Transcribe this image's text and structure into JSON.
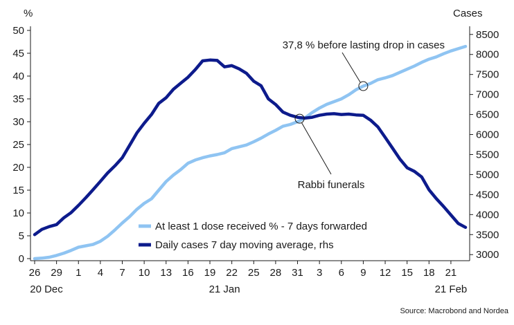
{
  "chart_data": {
    "type": "line",
    "left_axis": {
      "unit": "%",
      "range": [
        0,
        50
      ],
      "ticks": [
        "0",
        "5",
        "10",
        "15",
        "20",
        "25",
        "30",
        "35",
        "40",
        "45",
        "50"
      ]
    },
    "right_axis": {
      "unit": "Cases",
      "range": [
        2900,
        8600
      ],
      "ticks": [
        "3000",
        "3500",
        "4000",
        "4500",
        "5000",
        "5500",
        "6000",
        "6500",
        "7000",
        "7500",
        "8000",
        "8500"
      ]
    },
    "x_axis": {
      "start_date": "2020-12-26",
      "end_date": "2021-02-23",
      "tick_labels": [
        "26",
        "29",
        "1",
        "4",
        "7",
        "10",
        "13",
        "16",
        "19",
        "22",
        "25",
        "28",
        "31",
        "3",
        "6",
        "9",
        "12",
        "15",
        "18",
        "21"
      ],
      "month_labels": [
        "20 Dec",
        "21 Jan",
        "21 Feb"
      ]
    },
    "series": [
      {
        "name": "At least 1 dose received % - 7 days forwarded",
        "axis": "left",
        "color": "#8fc4f2",
        "x": [
          "2020-12-26",
          "2020-12-27",
          "2020-12-28",
          "2020-12-29",
          "2020-12-30",
          "2020-12-31",
          "2021-01-01",
          "2021-01-02",
          "2021-01-03",
          "2021-01-04",
          "2021-01-05",
          "2021-01-06",
          "2021-01-07",
          "2021-01-08",
          "2021-01-09",
          "2021-01-10",
          "2021-01-11",
          "2021-01-12",
          "2021-01-13",
          "2021-01-14",
          "2021-01-15",
          "2021-01-16",
          "2021-01-17",
          "2021-01-18",
          "2021-01-19",
          "2021-01-20",
          "2021-01-21",
          "2021-01-22",
          "2021-01-23",
          "2021-01-24",
          "2021-01-25",
          "2021-01-26",
          "2021-01-27",
          "2021-01-28",
          "2021-01-29",
          "2021-01-30",
          "2021-01-31",
          "2021-02-01",
          "2021-02-02",
          "2021-02-03",
          "2021-02-04",
          "2021-02-05",
          "2021-02-06",
          "2021-02-07",
          "2021-02-08",
          "2021-02-09",
          "2021-02-10",
          "2021-02-11",
          "2021-02-12",
          "2021-02-13",
          "2021-02-14",
          "2021-02-15",
          "2021-02-16",
          "2021-02-17",
          "2021-02-18",
          "2021-02-19",
          "2021-02-20",
          "2021-02-21",
          "2021-02-22",
          "2021-02-23"
        ],
        "values": [
          0,
          0.1,
          0.3,
          0.7,
          1.2,
          1.8,
          2.5,
          2.8,
          3.1,
          3.8,
          4.9,
          6.3,
          7.8,
          9.2,
          10.8,
          12.1,
          13.1,
          15,
          16.9,
          18.3,
          19.5,
          20.9,
          21.6,
          22.1,
          22.5,
          22.8,
          23.2,
          24.1,
          24.5,
          24.9,
          25.6,
          26.4,
          27.3,
          28.1,
          29,
          29.4,
          30,
          30.8,
          32,
          33,
          33.8,
          34.4,
          35,
          35.9,
          37,
          37.8,
          38.4,
          39.2,
          39.6,
          40.1,
          40.8,
          41.5,
          42.2,
          43,
          43.7,
          44.2,
          44.9,
          45.5,
          46,
          46.5
        ]
      },
      {
        "name": "Daily cases 7 day moving average, rhs",
        "axis": "right",
        "color": "#0d1b8c",
        "x": [
          "2020-12-26",
          "2020-12-27",
          "2020-12-28",
          "2020-12-29",
          "2020-12-30",
          "2020-12-31",
          "2021-01-01",
          "2021-01-02",
          "2021-01-03",
          "2021-01-04",
          "2021-01-05",
          "2021-01-06",
          "2021-01-07",
          "2021-01-08",
          "2021-01-09",
          "2021-01-10",
          "2021-01-11",
          "2021-01-12",
          "2021-01-13",
          "2021-01-14",
          "2021-01-15",
          "2021-01-16",
          "2021-01-17",
          "2021-01-18",
          "2021-01-19",
          "2021-01-20",
          "2021-01-21",
          "2021-01-22",
          "2021-01-23",
          "2021-01-24",
          "2021-01-25",
          "2021-01-26",
          "2021-01-27",
          "2021-01-28",
          "2021-01-29",
          "2021-01-30",
          "2021-01-31",
          "2021-02-01",
          "2021-02-02",
          "2021-02-03",
          "2021-02-04",
          "2021-02-05",
          "2021-02-06",
          "2021-02-07",
          "2021-02-08",
          "2021-02-09",
          "2021-02-10",
          "2021-02-11",
          "2021-02-12",
          "2021-02-13",
          "2021-02-14",
          "2021-02-15",
          "2021-02-16",
          "2021-02-17",
          "2021-02-18",
          "2021-02-19",
          "2021-02-20",
          "2021-02-21",
          "2021-02-22",
          "2021-02-23"
        ],
        "values": [
          3500,
          3630,
          3700,
          3750,
          3920,
          4050,
          4230,
          4420,
          4620,
          4830,
          5040,
          5220,
          5420,
          5730,
          6040,
          6280,
          6500,
          6780,
          6920,
          7130,
          7280,
          7430,
          7620,
          7840,
          7860,
          7850,
          7690,
          7720,
          7640,
          7530,
          7330,
          7220,
          6890,
          6750,
          6560,
          6480,
          6430,
          6410,
          6430,
          6480,
          6510,
          6520,
          6500,
          6510,
          6490,
          6480,
          6360,
          6190,
          5930,
          5660,
          5390,
          5170,
          5080,
          4940,
          4620,
          4400,
          4200,
          3990,
          3780,
          3680
        ]
      }
    ],
    "annotations": [
      {
        "text": "37,8 % before lasting drop in cases",
        "date": "2021-02-09",
        "value": 37.8,
        "axis": "left"
      },
      {
        "text": "Rabbi funerals",
        "date": "2021-01-31",
        "value": 6430,
        "axis": "right"
      }
    ],
    "legend": {
      "placement": "bottom-center"
    },
    "grid": false,
    "source": "Source: Macrobond and Nordea"
  }
}
